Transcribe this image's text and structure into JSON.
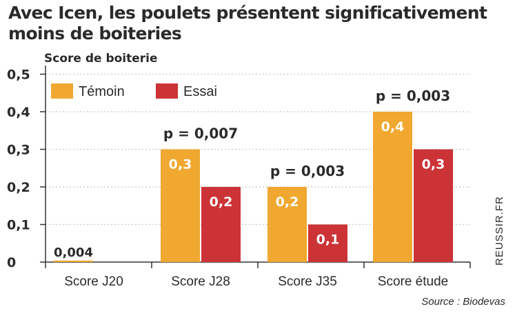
{
  "title": "Avec Icen, les poulets présentent significativement moins de boiteries",
  "source": "Source : Biodevas",
  "watermark": "REUSSIR.FR",
  "colors": {
    "temoin": "#f0a830",
    "essai": "#cc3336",
    "grid": "#c8c8c8"
  },
  "chart_data": {
    "type": "bar",
    "title": "",
    "ylabel": "Score de boiterie",
    "xlabel": "",
    "ylim": [
      0,
      0.5
    ],
    "y_ticks": [
      "0",
      "0,1",
      "0,2",
      "0,3",
      "0,4",
      "0,5"
    ],
    "categories": [
      "Score J20",
      "Score J28",
      "Score J35",
      "Score étude"
    ],
    "series": [
      {
        "name": "Témoin",
        "values": [
          0.004,
          0.3,
          0.2,
          0.4
        ],
        "labels": [
          "0,004",
          "0,3",
          "0,2",
          "0,4"
        ]
      },
      {
        "name": "Essai",
        "values": [
          0,
          0.2,
          0.1,
          0.3
        ],
        "labels": [
          "",
          "0,2",
          "0,1",
          "0,3"
        ]
      }
    ],
    "annotations": [
      "",
      "p = 0,007",
      "p = 0,003",
      "p = 0,003"
    ],
    "grid": true,
    "legend_position": "top-left"
  }
}
